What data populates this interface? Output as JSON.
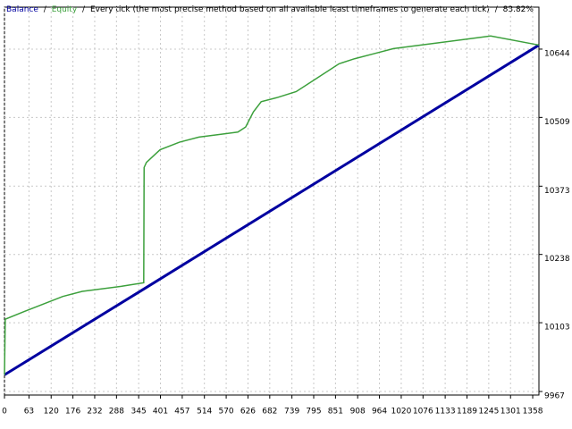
{
  "chart_data": {
    "type": "line",
    "title": "Every tick (the most precise method based on all available least timeframes to generate each tick)",
    "quality": "83.82%",
    "separator": "/",
    "xlim": [
      0,
      1374
    ],
    "ylim": [
      9960,
      10727
    ],
    "xticks": [
      0,
      63,
      120,
      176,
      232,
      288,
      345,
      401,
      457,
      514,
      570,
      626,
      682,
      739,
      795,
      851,
      908,
      964,
      1020,
      1076,
      1133,
      1189,
      1245,
      1301,
      1358
    ],
    "yticks": [
      9967,
      10103,
      10238,
      10373,
      10509,
      10644
    ],
    "grid": true,
    "series": [
      {
        "name": "Balance",
        "color": "#0000a0",
        "x": [
          0,
          359,
          1374
        ],
        "values": [
          10000,
          10170,
          10652
        ]
      },
      {
        "name": "Equity",
        "color": "#3ca03c",
        "x": [
          0,
          2,
          50,
          100,
          150,
          200,
          300,
          358,
          359,
          365,
          400,
          450,
          500,
          600,
          620,
          640,
          660,
          700,
          750,
          800,
          860,
          900,
          950,
          1000,
          1100,
          1200,
          1250,
          1374
        ],
        "values": [
          10000,
          10110,
          10125,
          10140,
          10155,
          10165,
          10175,
          10182,
          10410,
          10420,
          10445,
          10460,
          10470,
          10480,
          10490,
          10520,
          10540,
          10548,
          10560,
          10585,
          10615,
          10625,
          10635,
          10645,
          10655,
          10665,
          10670,
          10652
        ]
      }
    ]
  }
}
